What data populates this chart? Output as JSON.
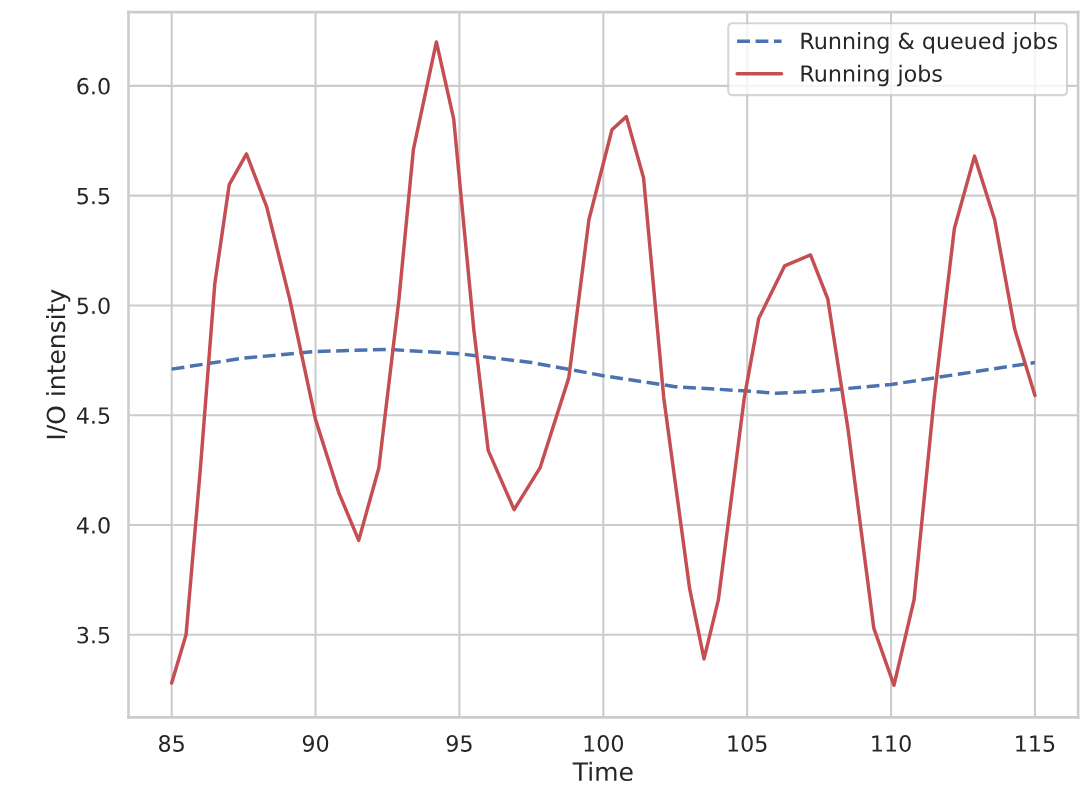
{
  "chart_data": {
    "type": "line",
    "xlabel": "Time",
    "ylabel": "I/O intensity",
    "xlim": [
      83.5,
      116.5
    ],
    "xticks": [
      85,
      90,
      95,
      100,
      105,
      110,
      115
    ],
    "ylim": [
      3.124,
      6.336
    ],
    "yticks": [
      {
        "value": 3.5,
        "label": "3.5"
      },
      {
        "value": 4.0,
        "label": "4.0"
      },
      {
        "value": 4.5,
        "label": "4.5"
      },
      {
        "value": 5.0,
        "label": "5.0"
      },
      {
        "value": 5.5,
        "label": "5.5"
      },
      {
        "value": 6.0,
        "label": "6.0"
      }
    ],
    "grid": true,
    "legend": "top right",
    "series": [
      {
        "name": "Running & queued jobs",
        "color": "#4c72b0",
        "line_style": "dashed",
        "x": [
          85,
          87.5,
          90,
          92.5,
          95,
          97.5,
          100,
          102.5,
          105,
          106,
          107.5,
          110,
          112.5,
          115
        ],
        "values": [
          4.71,
          4.76,
          4.79,
          4.8,
          4.78,
          4.74,
          4.68,
          4.63,
          4.61,
          4.6,
          4.61,
          4.64,
          4.69,
          4.74
        ]
      },
      {
        "name": "Running jobs",
        "color": "#c44e52",
        "line_style": "solid",
        "x": [
          85,
          85.5,
          86,
          86.5,
          87,
          87.6,
          88.3,
          89.1,
          90,
          90.8,
          91.5,
          92.2,
          92.9,
          93.4,
          94.2,
          94.8,
          95.5,
          96,
          96.9,
          97.8,
          98.8,
          99.5,
          100.3,
          100.8,
          101.4,
          102.1,
          103,
          103.5,
          104,
          104.9,
          105.4,
          106.3,
          107.2,
          107.8,
          108.5,
          109.4,
          110.1,
          110.8,
          111.5,
          112.2,
          112.9,
          113.6,
          114.3,
          115
        ],
        "values": [
          3.28,
          3.5,
          4.26,
          5.1,
          5.55,
          5.69,
          5.45,
          5.03,
          4.48,
          4.15,
          3.93,
          4.26,
          5.03,
          5.71,
          6.2,
          5.85,
          4.89,
          4.34,
          4.07,
          4.26,
          4.67,
          5.39,
          5.8,
          5.86,
          5.58,
          4.58,
          3.71,
          3.39,
          3.66,
          4.58,
          4.94,
          5.18,
          5.23,
          5.03,
          4.44,
          3.53,
          3.27,
          3.66,
          4.58,
          5.35,
          5.68,
          5.39,
          4.89,
          4.59
        ]
      }
    ]
  }
}
